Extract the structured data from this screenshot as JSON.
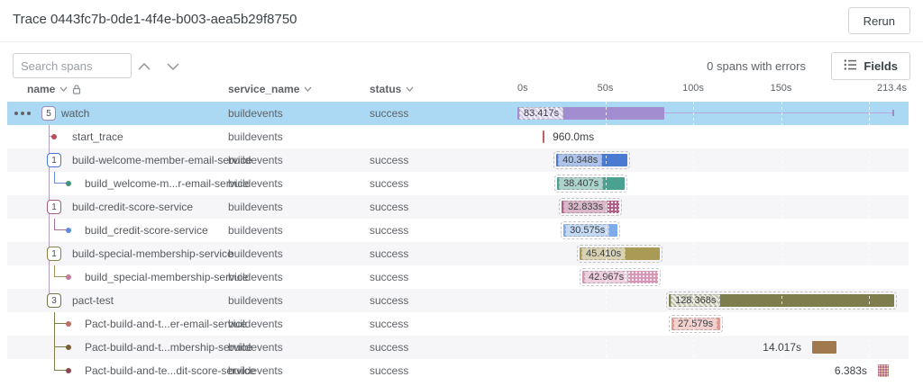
{
  "header": {
    "title": "Trace 0443fc7b-0de1-4f4e-b003-aea5b29f8750",
    "rerun_label": "Rerun"
  },
  "toolbar": {
    "search_placeholder": "Search spans",
    "errors_text": "0 spans with errors",
    "fields_label": "Fields"
  },
  "columns": {
    "name": "name",
    "service_name": "service_name",
    "status": "status"
  },
  "timeline": {
    "total_s": 213.4,
    "ticks": [
      {
        "t": 0,
        "label": "0s"
      },
      {
        "t": 50,
        "label": "50s"
      },
      {
        "t": 100,
        "label": "100s"
      },
      {
        "t": 150,
        "label": "150s"
      }
    ],
    "end_label": "213.4s",
    "gridline_times": [
      50,
      100,
      150,
      200
    ]
  },
  "colors": {
    "highlight_row": "#abd9f4",
    "gray_row": "#f6f6f8",
    "trunk_watch": "#b49fc4"
  },
  "spans": [
    {
      "name": "watch",
      "service": "buildevents",
      "status": "success",
      "row_bg": "highlight",
      "menu": true,
      "marker": {
        "kind": "box",
        "count": "5",
        "color": "#9b8ab5"
      },
      "t1": "none",
      "t2": "none",
      "t2_color": "",
      "bar": {
        "start_s": 0,
        "duration_s": 83.417,
        "label": "83.417s",
        "color": "#a18dcf",
        "label_pos": "inside",
        "chip_hatch": true,
        "outlined": false,
        "pattern": "none"
      },
      "trail": true
    },
    {
      "name": "start_trace",
      "service": "buildevents",
      "status": "",
      "row_bg": "white",
      "menu": false,
      "marker": {
        "kind": "dot",
        "count": "",
        "color": "#b9505c"
      },
      "t1": "branch",
      "t2": "none",
      "t2_color": "",
      "bar": {
        "start_s": 14.4,
        "duration_s": 0.96,
        "label": "960.0ms",
        "color": "#c75f68",
        "label_pos": "right",
        "chip_hatch": false,
        "outlined": false,
        "pattern": "none"
      },
      "trail": false
    },
    {
      "name": "build-welcome-member-email-service",
      "service": "buildevents",
      "status": "success",
      "row_bg": "gray",
      "menu": false,
      "marker": {
        "kind": "box",
        "count": "1",
        "color": "#4a79cf"
      },
      "t1": "branch",
      "t2": "none",
      "t2_color": "",
      "bar": {
        "start_s": 22.1,
        "duration_s": 40.348,
        "label": "40.348s",
        "color": "#4a7bd1",
        "label_pos": "inside",
        "chip_hatch": false,
        "outlined": true,
        "pattern": "none"
      },
      "trail": false
    },
    {
      "name": "build_welcome-m...r-email-service",
      "service": "buildevents",
      "status": "success",
      "row_bg": "white",
      "menu": false,
      "marker": {
        "kind": "dot",
        "count": "",
        "color": "#3f9480"
      },
      "t1": "pass",
      "t2": "end",
      "t2_color": "#6b8fd4",
      "bar": {
        "start_s": 22.6,
        "duration_s": 38.407,
        "label": "38.407s",
        "color": "#4ba18f",
        "label_pos": "inside",
        "chip_hatch": false,
        "outlined": true,
        "pattern": "none"
      },
      "trail": false
    },
    {
      "name": "build-credit-score-service",
      "service": "buildevents",
      "status": "success",
      "row_bg": "gray",
      "menu": false,
      "marker": {
        "kind": "box",
        "count": "1",
        "color": "#a75d7d"
      },
      "t1": "branch",
      "t2": "none",
      "t2_color": "",
      "bar": {
        "start_s": 25.1,
        "duration_s": 32.833,
        "label": "32.833s",
        "color": "#ad6087",
        "label_pos": "inside",
        "chip_hatch": false,
        "outlined": true,
        "pattern": "right"
      },
      "trail": false
    },
    {
      "name": "build_credit-score-service",
      "service": "buildevents",
      "status": "success",
      "row_bg": "white",
      "menu": false,
      "marker": {
        "kind": "dot",
        "count": "",
        "color": "#5b8dd6"
      },
      "t1": "pass",
      "t2": "end",
      "t2_color": "#a86f8e",
      "bar": {
        "start_s": 26.2,
        "duration_s": 30.575,
        "label": "30.575s",
        "color": "#7fabe8",
        "label_pos": "inside",
        "chip_hatch": false,
        "outlined": true,
        "pattern": "none"
      },
      "trail": false
    },
    {
      "name": "build-special-membership-service",
      "service": "buildevents",
      "status": "success",
      "row_bg": "gray",
      "menu": false,
      "marker": {
        "kind": "box",
        "count": "1",
        "color": "#8a8148"
      },
      "t1": "branch",
      "t2": "none",
      "t2_color": "",
      "bar": {
        "start_s": 35.4,
        "duration_s": 45.41,
        "label": "45.410s",
        "color": "#a99b55",
        "label_pos": "inside",
        "chip_hatch": false,
        "outlined": true,
        "pattern": "none"
      },
      "trail": false
    },
    {
      "name": "build_special-membership-service",
      "service": "buildevents",
      "status": "success",
      "row_bg": "white",
      "menu": false,
      "marker": {
        "kind": "dot",
        "count": "",
        "color": "#c27ba0"
      },
      "t1": "pass",
      "t2": "end",
      "t2_color": "#9a9058",
      "bar": {
        "start_s": 36.9,
        "duration_s": 42.967,
        "label": "42.967s",
        "color": "#d795b4",
        "label_pos": "inside",
        "chip_hatch": false,
        "outlined": true,
        "pattern": "right-half"
      },
      "trail": false
    },
    {
      "name": "pact-test",
      "service": "buildevents",
      "status": "success",
      "row_bg": "gray",
      "menu": false,
      "marker": {
        "kind": "box",
        "count": "3",
        "color": "#75754a"
      },
      "t1": "end",
      "t2": "none",
      "t2_color": "",
      "bar": {
        "start_s": 86.2,
        "duration_s": 128.368,
        "label": "128.368s",
        "color": "#7d7d4e",
        "label_pos": "inside",
        "chip_hatch": true,
        "outlined": true,
        "pattern": "none"
      },
      "trail": false
    },
    {
      "name": "Pact-build-and-t...er-email-service",
      "service": "buildevents",
      "status": "success",
      "row_bg": "white",
      "menu": false,
      "marker": {
        "kind": "dot",
        "count": "",
        "color": "#bf6f63"
      },
      "t1": "none",
      "t2": "branch",
      "t2_color": "#7d7d4a",
      "bar": {
        "start_s": 87.7,
        "duration_s": 27.579,
        "label": "27.579s",
        "color": "#e29a92",
        "label_pos": "inside",
        "chip_hatch": false,
        "outlined": true,
        "pattern": "none"
      },
      "trail": false
    },
    {
      "name": "Pact-build-and-t...mbership-service",
      "service": "buildevents",
      "status": "success",
      "row_bg": "gray",
      "menu": false,
      "marker": {
        "kind": "dot",
        "count": "",
        "color": "#7d5c38"
      },
      "t1": "none",
      "t2": "branch",
      "t2_color": "#7d7d4a",
      "bar": {
        "start_s": 167.7,
        "duration_s": 14.017,
        "label": "14.017s",
        "color": "#a1794f",
        "label_pos": "left",
        "chip_hatch": false,
        "outlined": false,
        "pattern": "none"
      },
      "trail": false
    },
    {
      "name": "Pact-build-and-te...dit-score-service",
      "service": "buildevents",
      "status": "success",
      "row_bg": "white",
      "menu": false,
      "marker": {
        "kind": "dot",
        "count": "",
        "color": "#8f4352"
      },
      "t1": "none",
      "t2": "end",
      "t2_color": "#7d7d4a",
      "bar": {
        "start_s": 205.1,
        "duration_s": 6.383,
        "label": "6.383s",
        "color": "#a2537f",
        "label_pos": "left",
        "chip_hatch": false,
        "outlined": false,
        "pattern": "full-cream"
      },
      "trail": false
    }
  ]
}
